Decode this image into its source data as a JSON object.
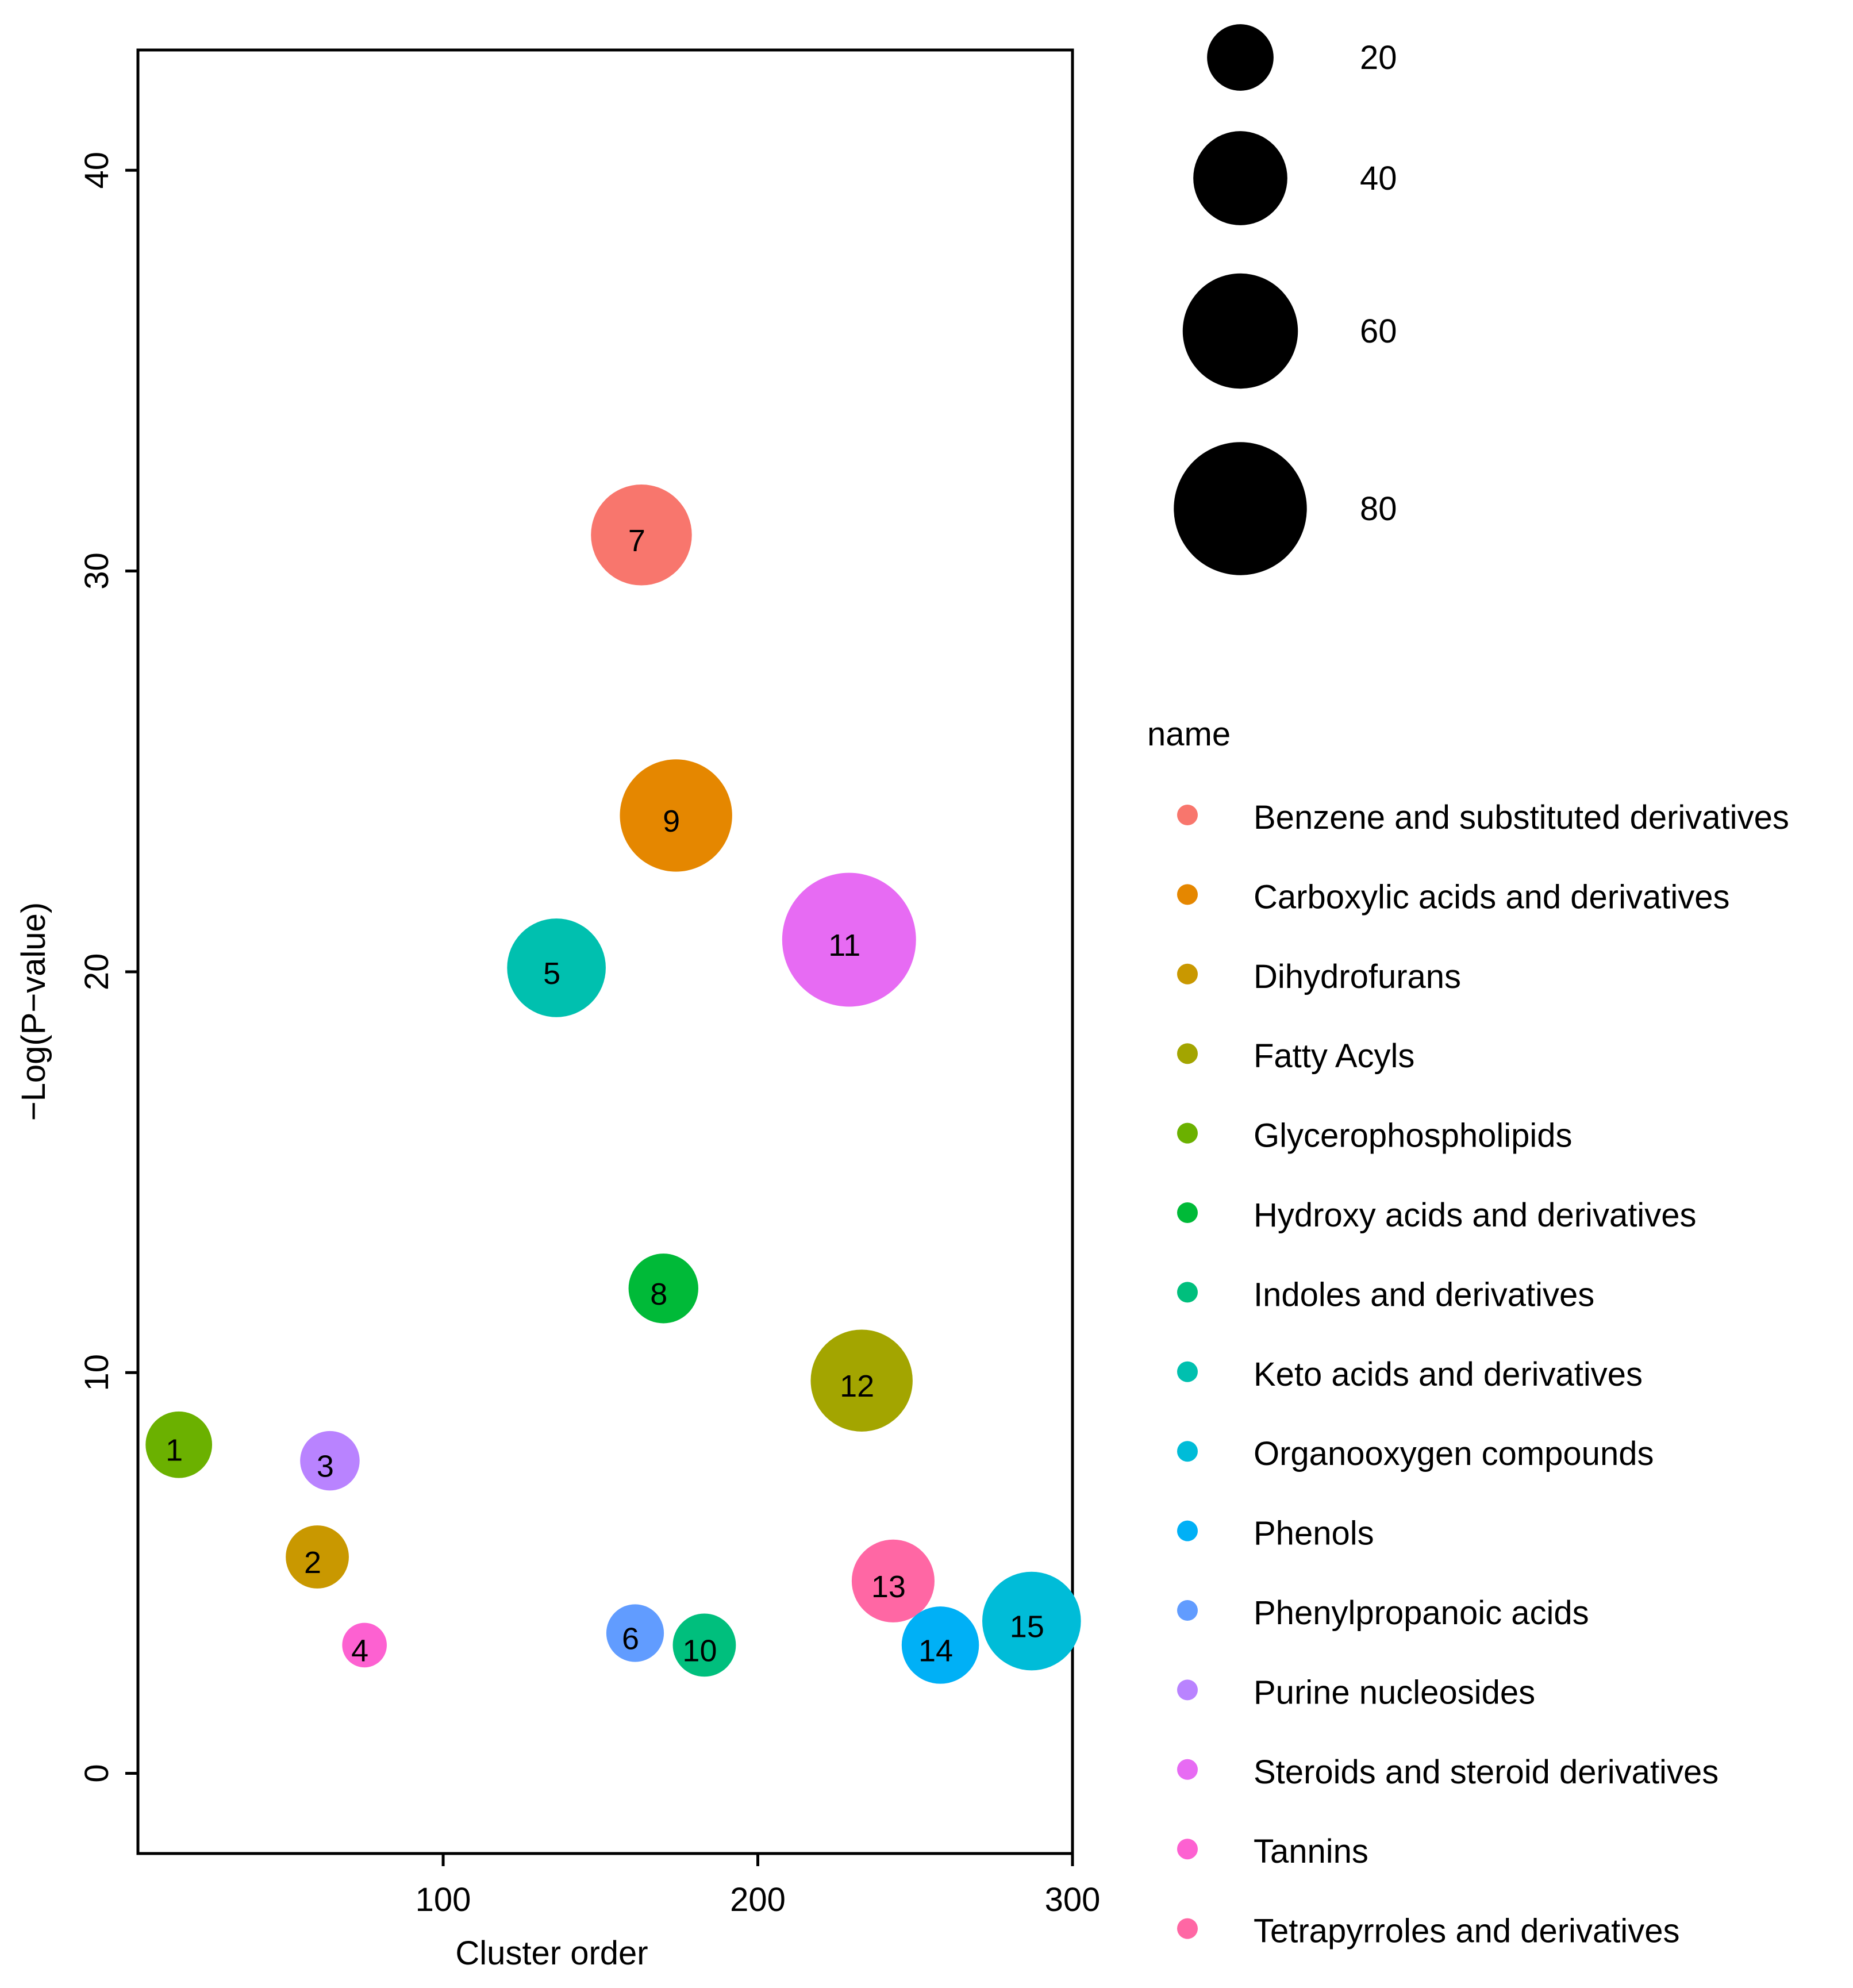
{
  "chart_data": {
    "type": "scatter",
    "title": "",
    "xlabel": "Cluster order",
    "ylabel": "−Log(P−value)",
    "xlim": [
      3,
      300
    ],
    "ylim": [
      -2,
      43
    ],
    "xticks": [
      100,
      200,
      300
    ],
    "yticks": [
      0,
      10,
      20,
      30,
      40
    ],
    "grid": false,
    "size_legend": {
      "title": "",
      "entries": [
        {
          "label": "20",
          "size": 20
        },
        {
          "label": "40",
          "size": 40
        },
        {
          "label": "60",
          "size": 60
        },
        {
          "label": "80",
          "size": 80
        }
      ]
    },
    "color_legend": {
      "title": "name",
      "placement": "right",
      "entries": [
        {
          "name": "Benzene and substituted derivatives",
          "color": "#F8766D"
        },
        {
          "name": "Carboxylic acids and derivatives",
          "color": "#E58700"
        },
        {
          "name": "Dihydrofurans",
          "color": "#C99800"
        },
        {
          "name": "Fatty Acyls",
          "color": "#A3A500"
        },
        {
          "name": "Glycerophospholipids",
          "color": "#6BB100"
        },
        {
          "name": "Hydroxy acids and derivatives",
          "color": "#00BA38"
        },
        {
          "name": "Indoles and derivatives",
          "color": "#00BF7D"
        },
        {
          "name": "Keto acids and derivatives",
          "color": "#00C0AF"
        },
        {
          "name": "Organooxygen compounds",
          "color": "#00BCD8"
        },
        {
          "name": "Phenols",
          "color": "#00B0F6"
        },
        {
          "name": "Phenylpropanoic acids",
          "color": "#619CFF"
        },
        {
          "name": "Purine nucleosides",
          "color": "#B983FF"
        },
        {
          "name": "Steroids and steroid derivatives",
          "color": "#E76BF3"
        },
        {
          "name": "Tannins",
          "color": "#FD61D1"
        },
        {
          "name": "Tetrapyrroles and derivatives",
          "color": "#FF67A4"
        }
      ]
    },
    "points": [
      {
        "label": "1",
        "x": 16,
        "y": 8.2,
        "size": 20,
        "color": "#6BB100"
      },
      {
        "label": "2",
        "x": 60,
        "y": 5.4,
        "size": 18,
        "color": "#C99800"
      },
      {
        "label": "3",
        "x": 64,
        "y": 7.8,
        "size": 16,
        "color": "#B983FF"
      },
      {
        "label": "4",
        "x": 75,
        "y": 3.2,
        "size": 9,
        "color": "#FD61D1"
      },
      {
        "label": "5",
        "x": 136,
        "y": 20.1,
        "size": 44,
        "color": "#00C0AF"
      },
      {
        "label": "6",
        "x": 161,
        "y": 3.5,
        "size": 15,
        "color": "#619CFF"
      },
      {
        "label": "7",
        "x": 163,
        "y": 30.9,
        "size": 46,
        "color": "#F8766D"
      },
      {
        "label": "8",
        "x": 170,
        "y": 12.1,
        "size": 22,
        "color": "#00BA38"
      },
      {
        "label": "9",
        "x": 174,
        "y": 23.9,
        "size": 57,
        "color": "#E58700"
      },
      {
        "label": "10",
        "x": 183,
        "y": 3.2,
        "size": 18,
        "color": "#00BF7D"
      },
      {
        "label": "11",
        "x": 229,
        "y": 20.8,
        "size": 81,
        "color": "#E76BF3"
      },
      {
        "label": "12",
        "x": 233,
        "y": 9.8,
        "size": 47,
        "color": "#A3A500"
      },
      {
        "label": "13",
        "x": 243,
        "y": 4.8,
        "size": 31,
        "color": "#FF67A4"
      },
      {
        "label": "14",
        "x": 258,
        "y": 3.2,
        "size": 27,
        "color": "#00B0F6"
      },
      {
        "label": "15",
        "x": 287,
        "y": 3.8,
        "size": 44,
        "color": "#00BCD8"
      }
    ]
  }
}
